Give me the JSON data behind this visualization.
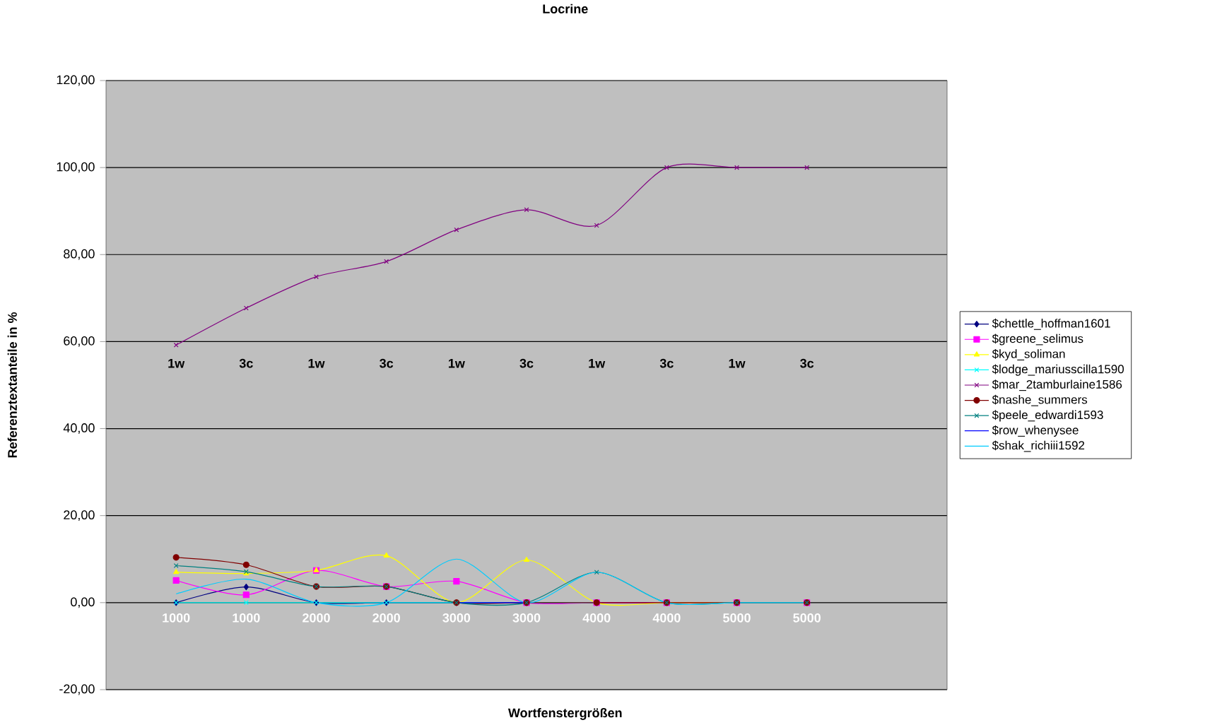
{
  "chart_data": {
    "type": "line",
    "title": "Locrine",
    "xlabel": "Wortfenstergrößen",
    "ylabel": "Referenztextanteile in %",
    "categories": [
      "1000",
      "1000",
      "2000",
      "2000",
      "3000",
      "3000",
      "4000",
      "4000",
      "5000",
      "5000"
    ],
    "ylim": [
      -20,
      120
    ],
    "yticks": [
      {
        "value": -20,
        "label": "-20,00"
      },
      {
        "value": 0,
        "label": "0,00"
      },
      {
        "value": 20,
        "label": "20,00"
      },
      {
        "value": 40,
        "label": "40,00"
      },
      {
        "value": 60,
        "label": "60,00"
      },
      {
        "value": 80,
        "label": "80,00"
      },
      {
        "value": 100,
        "label": "100,00"
      },
      {
        "value": 120,
        "label": "120,00"
      }
    ],
    "grid": "y",
    "legend": "right",
    "annotations": [
      "1w",
      "3c",
      "1w",
      "3c",
      "1w",
      "3c",
      "1w",
      "3c",
      "1w",
      "3c"
    ],
    "series": [
      {
        "name": "$chettle_hoffman1601",
        "color": "#000080",
        "marker": "diamond",
        "values": [
          0,
          3.6,
          0,
          0,
          0,
          0,
          0,
          null,
          null,
          null
        ]
      },
      {
        "name": "$greene_selimus",
        "color": "#ff00ff",
        "marker": "square",
        "values": [
          5.1,
          1.8,
          7.4,
          3.7,
          4.9,
          0,
          0,
          0,
          0,
          0
        ]
      },
      {
        "name": "$kyd_soliman",
        "color": "#ffff00",
        "marker": "triangle",
        "values": [
          7.0,
          6.7,
          7.4,
          10.8,
          0,
          9.8,
          0,
          0,
          0,
          0
        ]
      },
      {
        "name": "$lodge_mariusscilla1590",
        "color": "#00ffff",
        "marker": "cross",
        "values": [
          0,
          0,
          0,
          0,
          0,
          0,
          0,
          null,
          null,
          null
        ]
      },
      {
        "name": "$mar_2tamburlaine1586",
        "color": "#800080",
        "marker": "cross",
        "values": [
          59.2,
          67.7,
          74.9,
          78.4,
          85.7,
          90.3,
          86.7,
          100,
          100,
          100
        ]
      },
      {
        "name": "$nashe_summers",
        "color": "#800000",
        "marker": "circle",
        "values": [
          10.4,
          8.7,
          3.7,
          3.7,
          0,
          0,
          0,
          0,
          0,
          0
        ]
      },
      {
        "name": "$peele_edwardi1593",
        "color": "#008080",
        "marker": "cross",
        "values": [
          8.5,
          7.1,
          3.7,
          3.7,
          0,
          0,
          7.0,
          0,
          0,
          0
        ]
      },
      {
        "name": "$row_whenysee",
        "color": "#0000ff",
        "marker": "none",
        "values": [
          null,
          null,
          null,
          null,
          0,
          0,
          null,
          null,
          null,
          null
        ]
      },
      {
        "name": "$shak_richiii1592",
        "color": "#00ccff",
        "marker": "none",
        "values": [
          2.0,
          5.4,
          0,
          0,
          10.0,
          0,
          7.0,
          0,
          0,
          0
        ]
      }
    ]
  }
}
